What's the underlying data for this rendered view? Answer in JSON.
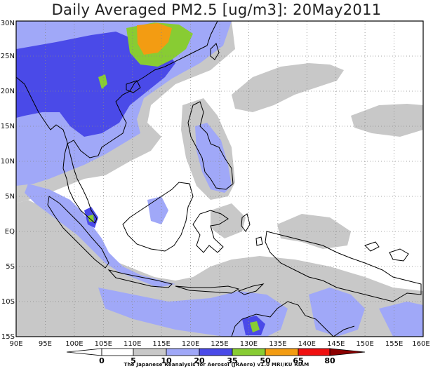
{
  "title": "Daily Averaged PM2.5 [ug/m3]: 20May2011",
  "credit": "The Japanese Reanalysis for Aerosol (JRAero) v1.0 MRI/KU RIAM",
  "map": {
    "lon_range": [
      90,
      160
    ],
    "lat_range": [
      -15,
      30
    ],
    "lon_ticks": [
      "90E",
      "95E",
      "100E",
      "105E",
      "110E",
      "115E",
      "120E",
      "125E",
      "130E",
      "135E",
      "140E",
      "145E",
      "150E",
      "155E",
      "160E"
    ],
    "lat_ticks": [
      "15S",
      "10S",
      "5S",
      "EQ",
      "5N",
      "10N",
      "15N",
      "20N",
      "25N",
      "30N"
    ],
    "grid": true
  },
  "legend": {
    "levels": [
      "0",
      "5",
      "10",
      "20",
      "35",
      "50",
      "65",
      "80"
    ],
    "colors": {
      "c0_5": "#ffffff",
      "c5_10": "#ffffff",
      "c10_20": "#c8c8c8",
      "c20_35": "#a0a8f8",
      "c35_50": "#4a4ae8",
      "c50_65": "#88cc33",
      "c65_80": "#f39c12",
      "c80_plus": "#f01010",
      "c_over": "#8b0000"
    }
  }
}
